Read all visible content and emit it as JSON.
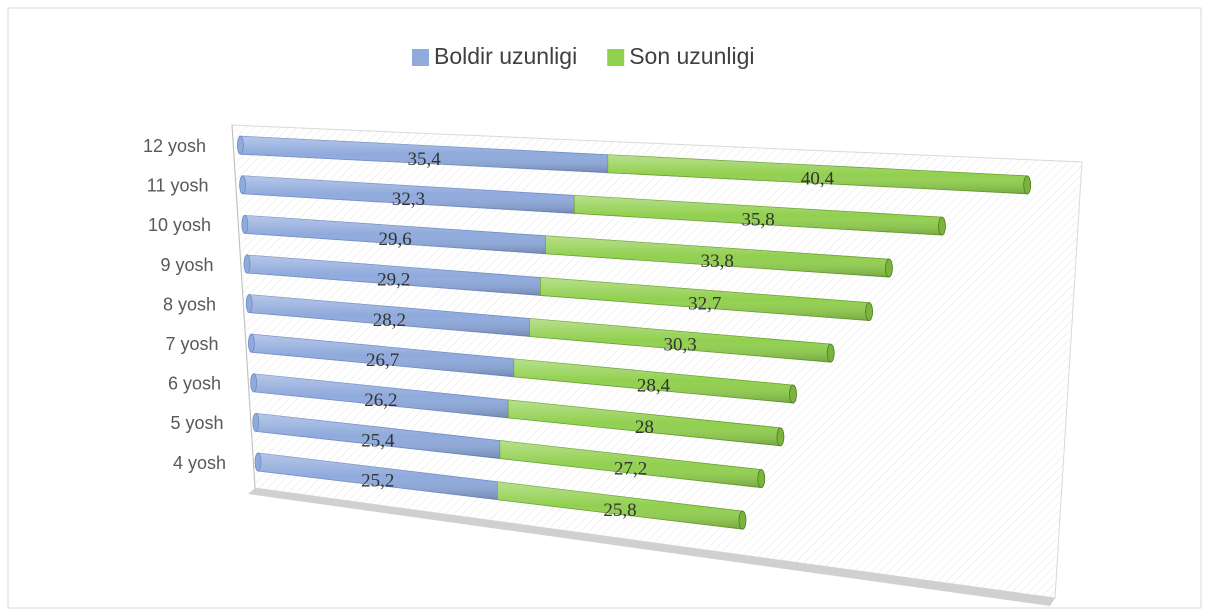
{
  "chart_data": {
    "type": "bar3d_stacked_horizontal",
    "categories": [
      "4 yosh",
      "5 yosh",
      "6 yosh",
      "7 yosh",
      "8 yosh",
      "9 yosh",
      "10 yosh",
      "11 yosh",
      "12 yosh"
    ],
    "series": [
      {
        "name": "Boldir uzunligi",
        "color": "#8faadc",
        "values": [
          25.2,
          25.4,
          26.2,
          26.7,
          28.2,
          29.2,
          29.6,
          32.3,
          35.4
        ],
        "value_labels": [
          "25,2",
          "25,4",
          "26,2",
          "26,7",
          "28,2",
          "29,2",
          "29,6",
          "32,3",
          "35,4"
        ]
      },
      {
        "name": "Son uzunligi",
        "color": "#92d050",
        "values": [
          25.8,
          27.2,
          28,
          28.4,
          30.3,
          32.7,
          33.8,
          35.8,
          40.4
        ],
        "value_labels": [
          "25,8",
          "27,2",
          "28",
          "28,4",
          "30,3",
          "32,7",
          "33,8",
          "35,8",
          "40,4"
        ]
      }
    ],
    "legend": "top"
  }
}
